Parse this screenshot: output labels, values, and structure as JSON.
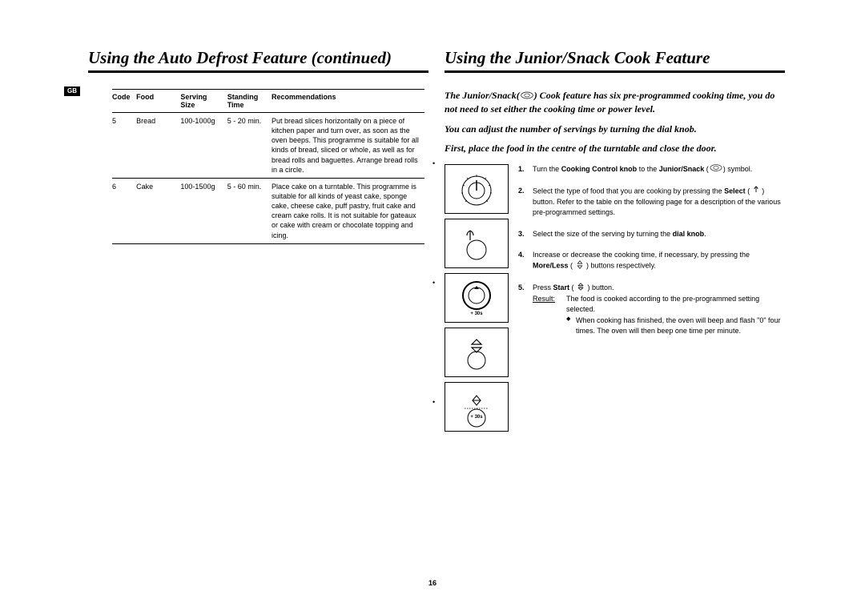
{
  "pageNumber": "16",
  "gbTag": "GB",
  "left": {
    "title": "Using the Auto Defrost Feature (continued)",
    "headers": {
      "code": "Code",
      "food": "Food",
      "size": "Serving Size",
      "time": "Standing Time",
      "rec": "Recommendations"
    },
    "rows": [
      {
        "code": "5",
        "food": "Bread",
        "size": "100-1000g",
        "time": "5 - 20 min.",
        "rec": "Put bread slices horizontally on a piece of kitchen paper and turn over, as soon as the oven beeps. This programme is suitable for all kinds of bread, sliced or whole, as well as for bread rolls and baguettes. Arrange bread rolls in a circle."
      },
      {
        "code": "6",
        "food": "Cake",
        "size": "100-1500g",
        "time": "5 - 60 min.",
        "rec": "Place cake on a turntable. This programme is suitable for all kinds of yeast cake, sponge cake, cheese cake, puff pastry, fruit cake and cream cake rolls. It is not suitable for gateaux or cake with cream or chocolate topping and icing."
      }
    ]
  },
  "right": {
    "title": "Using the Junior/Snack Cook Feature",
    "intro1_a": "The Junior/Snack(",
    "intro1_b": ") Cook feature has six pre-programmed cooking time, you do not need to set either the cooking time or power level.",
    "intro2": "You can adjust the number of servings by turning the dial knob.",
    "intro3": "First, place the food in the centre of the turntable and close the door.",
    "steps": [
      {
        "n": "1.",
        "parts": [
          {
            "t": "Turn the "
          },
          {
            "t": "Cooking Control knob",
            "b": true
          },
          {
            "t": " to the "
          },
          {
            "t": "Junior/Snack",
            "b": true
          },
          {
            "t": " ("
          },
          {
            "icon": "snack"
          },
          {
            "t": ") symbol."
          }
        ]
      },
      {
        "n": "2.",
        "parts": [
          {
            "t": "Select the type of food that you are cooking by pressing the "
          },
          {
            "t": "Select",
            "b": true
          },
          {
            "t": " ( "
          },
          {
            "icon": "select"
          },
          {
            "t": " ) button. Refer to the table on the following page for a description of the various pre-programmed settings."
          }
        ]
      },
      {
        "n": "3.",
        "parts": [
          {
            "t": "Select the size of the serving by turning the "
          },
          {
            "t": "dial knob",
            "b": true
          },
          {
            "t": "."
          }
        ]
      },
      {
        "n": "4.",
        "parts": [
          {
            "t": "Increase or decrease the cooking time, if necessary, by pressing the "
          },
          {
            "t": "More/Less",
            "b": true
          },
          {
            "t": " ( "
          },
          {
            "icon": "moreless"
          },
          {
            "t": " ) buttons respectively."
          }
        ]
      },
      {
        "n": "5.",
        "parts": [
          {
            "t": "Press "
          },
          {
            "t": "Start",
            "b": true
          },
          {
            "t": " ( "
          },
          {
            "icon": "start"
          },
          {
            "t": " ) button."
          }
        ],
        "resultLabel": "Result:",
        "resultText": "The food is cooked according to the pre-programmed setting selected.",
        "bullet": "When cooking has finished, the oven will beep and flash \"0\" four times. The oven will then beep one time per minute."
      }
    ],
    "panelLabel30s": "+ 30s"
  }
}
